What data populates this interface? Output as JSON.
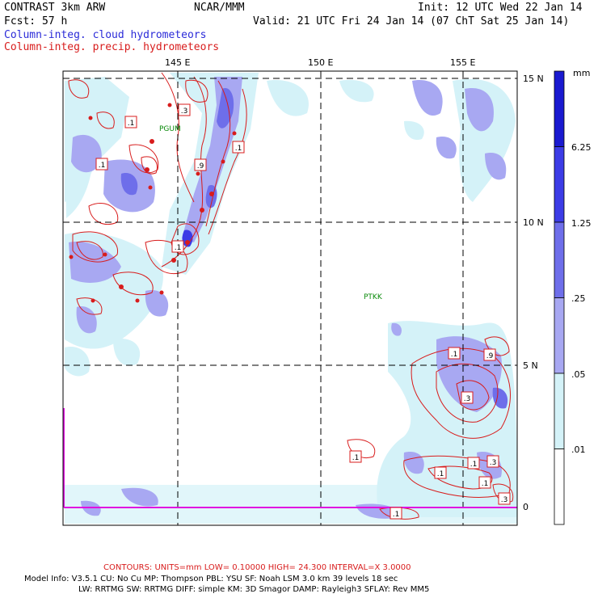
{
  "header": {
    "model": "CONTRAST  3km ARW",
    "center": "NCAR/MMM",
    "init": "Init: 12 UTC Wed 22 Jan 14",
    "fcst": "Fcst:   57 h",
    "valid": "Valid: 21 UTC Fri 24 Jan 14 (07 ChT Sat 25 Jan 14)",
    "field1": "Column-integ. cloud hydrometeors",
    "field2": "Column-integ. precip. hydrometeors"
  },
  "axes": {
    "lon_labels": [
      "145 E",
      "150 E",
      "155 E"
    ],
    "lat_labels": [
      "15 N",
      "10 N",
      "5 N",
      "0"
    ]
  },
  "stations": [
    "PGUM",
    "PTKK"
  ],
  "contour_labels": [
    ".3",
    ".1",
    ".1",
    ".1",
    ".9",
    ".1",
    ".1",
    ".9",
    ".3",
    ".1",
    ".1",
    ".3",
    ".1",
    ".1",
    ".3",
    ".1"
  ],
  "legend": {
    "units": "mm",
    "levels": [
      "6.25",
      "1.25",
      ".25",
      ".05",
      ".01"
    ],
    "colors": [
      "#1a1ad0",
      "#3c3ce6",
      "#6e6eea",
      "#a8a8f2",
      "#d4f2f8",
      "#ffffff"
    ]
  },
  "colors": {
    "contour": "#d81c1c",
    "border": "#e010e0",
    "station": "#0a8a0a"
  },
  "footer": {
    "contours": "CONTOURS:  UNITS=mm  LOW= 0.10000     HIGH=  24.300     INTERVAL=X  3.0000",
    "model_info_1": "Model Info: V3.5.1    CU: No Cu     MP: Thompson     PBL: YSU      SF: Noah LSM     3.0 km   39 levels    18 sec",
    "model_info_2": "LW: RRTMG    SW: RRTMG   DIFF: simple KM: 3D Smagor DAMP: Rayleigh3   SFLAY: Rev MM5"
  }
}
